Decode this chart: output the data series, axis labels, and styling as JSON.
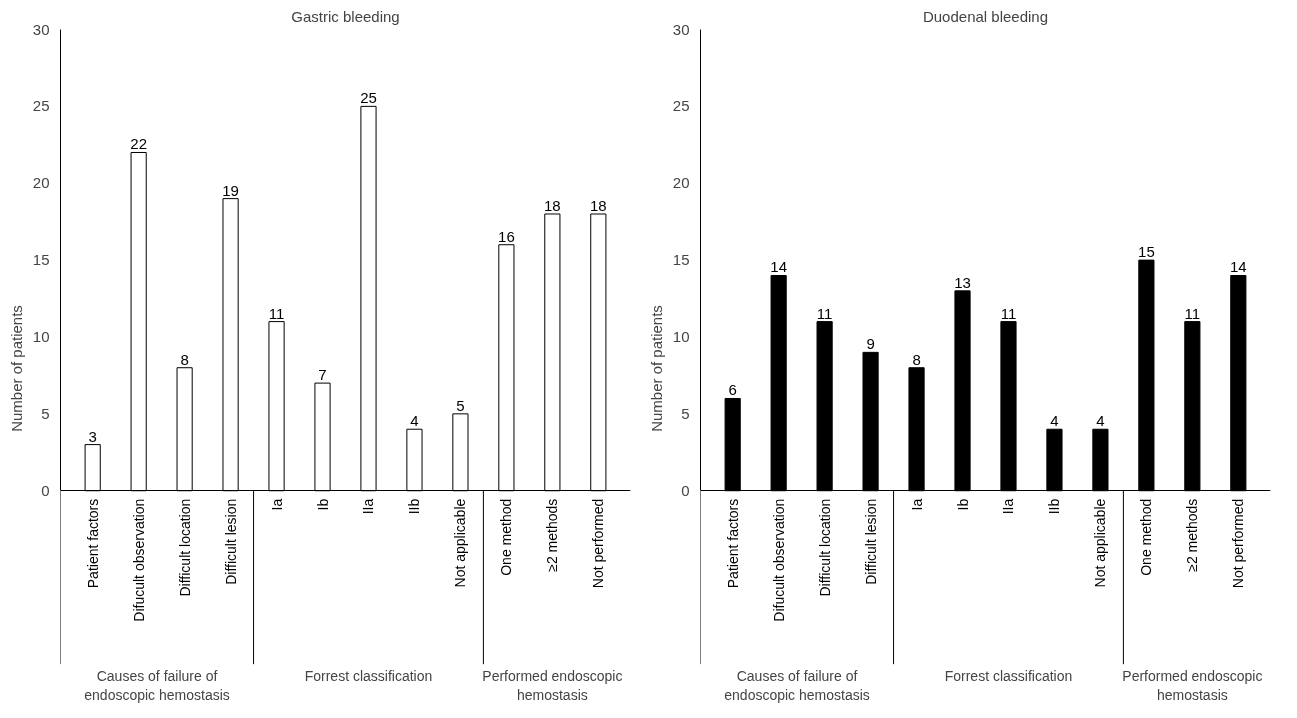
{
  "chart_data": [
    {
      "type": "bar",
      "title": "Gastric bleeding",
      "ylabel": "Number of patients",
      "categories": [
        "Patient factors",
        "Difucult observation",
        "Difficult location",
        "Difficult lesion",
        "Ia",
        "Ib",
        "IIa",
        "IIb",
        "Not applicable",
        "One method",
        "≥2 methods",
        "Not performed"
      ],
      "series": [
        {
          "color": "#ffffff",
          "values": [
            3,
            22,
            8,
            19,
            11,
            7,
            25,
            4,
            5,
            16,
            18,
            18
          ]
        }
      ],
      "ylim": [
        0,
        30
      ],
      "yticks": [
        0,
        5,
        10,
        15,
        20,
        25,
        30
      ],
      "grid": false,
      "data_labels": true,
      "annotations": [
        "Causes of failure of endoscopic hemostasis",
        "Forrest classification",
        "Performed endoscopic hemostasis"
      ]
    },
    {
      "type": "bar",
      "title": "Duodenal bleeding",
      "ylabel": "Number of patients",
      "categories": [
        "Patient factors",
        "Difucult observation",
        "Difficult location",
        "Difficult lesion",
        "Ia",
        "Ib",
        "IIa",
        "IIb",
        "Not applicable",
        "One method",
        "≥2 methods",
        "Not performed"
      ],
      "series": [
        {
          "color": "#000000",
          "values": [
            6,
            14,
            11,
            9,
            8,
            13,
            11,
            4,
            4,
            15,
            11,
            14
          ]
        }
      ],
      "ylim": [
        0,
        30
      ],
      "yticks": [
        0,
        5,
        10,
        15,
        20,
        25,
        30
      ],
      "grid": false,
      "data_labels": true,
      "annotations": [
        "Causes of failure of endoscopic hemostasis",
        "Forrest classification",
        "Performed endoscopic hemostasis"
      ]
    }
  ]
}
